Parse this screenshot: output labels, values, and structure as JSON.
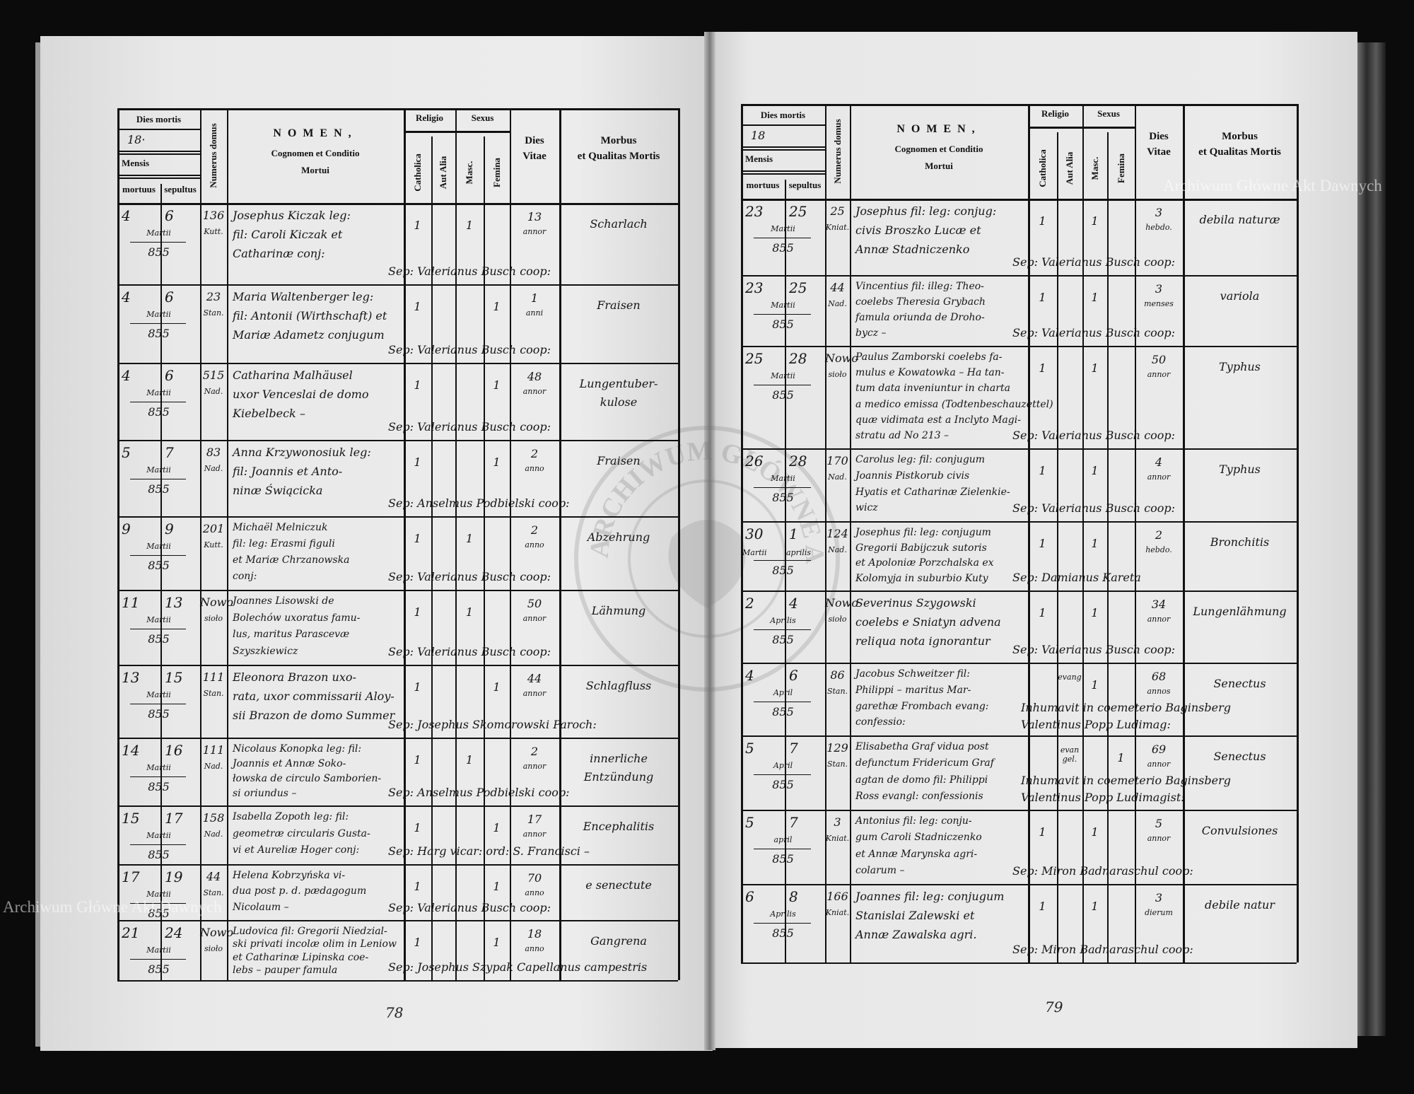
{
  "header": {
    "dies_mortis": "Dies mortis",
    "year_prefix": "18",
    "mensis": "Mensis",
    "mortuus": "mortuus",
    "sepultus": "sepultus",
    "numerus_domus": "Numerus domus",
    "nomen": "NOMEN,",
    "nomen_sub1": "Cognomen et Conditio",
    "nomen_sub2": "Mortui",
    "religio": "Religio",
    "catholica": "Catholica",
    "aut_alia": "Aut Alia",
    "sexus": "Sexus",
    "masc": "Masc.",
    "femina": "Femina",
    "dies_vitae_1": "Dies",
    "dies_vitae_2": "Vitae",
    "morbus_1": "Morbus",
    "morbus_2": "et Qualitas Mortis"
  },
  "watermark": "Archiwum Główne Akt Dawnych",
  "seal_text": "ARCHIWUM GŁÓWNE AKT DAWNYCH",
  "pages": [
    {
      "page_number": "78",
      "year_prefix": "18·",
      "entries": [
        {
          "mortuus": "4",
          "sepultus": "6",
          "month": "Martii",
          "year": "855",
          "house": "136",
          "street": "Kutt.",
          "name": [
            "Josephus Kiczak leg:",
            "fil: Caroli Kiczak et",
            "Catharinæ conj:"
          ],
          "catholica": "1",
          "aut_alia": "",
          "masc": "1",
          "femina": "",
          "vitae": "13",
          "vitae_unit": "annor",
          "morbus": [
            "Scharlach"
          ],
          "sep": "Sep: Valerianus Busch coop:"
        },
        {
          "mortuus": "4",
          "sepultus": "6",
          "month": "Martii",
          "year": "855",
          "house": "23",
          "street": "Stan.",
          "name": [
            "Maria Waltenberger leg:",
            "fil: Antonii (Wirthschaft) et",
            "Mariæ Adametz conjugum"
          ],
          "catholica": "1",
          "aut_alia": "",
          "masc": "",
          "femina": "1",
          "vitae": "1",
          "vitae_unit": "anni",
          "morbus": [
            "Fraisen"
          ],
          "sep": "Sep: Valerianus Busch coop:"
        },
        {
          "mortuus": "4",
          "sepultus": "6",
          "month": "Martii",
          "year": "855",
          "house": "515",
          "street": "Nad.",
          "name": [
            "Catharina Malhäusel",
            "uxor Venceslai de domo",
            "Kiebelbeck –"
          ],
          "catholica": "1",
          "aut_alia": "",
          "masc": "",
          "femina": "1",
          "vitae": "48",
          "vitae_unit": "annor",
          "morbus": [
            "Lungentuber-",
            "kulose"
          ],
          "sep": "Sep: Valerianus Busch coop:"
        },
        {
          "mortuus": "5",
          "sepultus": "7",
          "month": "Martii",
          "year": "855",
          "house": "83",
          "street": "Nad.",
          "name": [
            "Anna Krzywonosiuk leg:",
            "fil: Joannis et Anto-",
            "ninæ Świącicka"
          ],
          "catholica": "1",
          "aut_alia": "",
          "masc": "",
          "femina": "1",
          "vitae": "2",
          "vitae_unit": "anno",
          "morbus": [
            "Fraisen"
          ],
          "sep": "Sep: Anselmus Podbielski coop:"
        },
        {
          "mortuus": "9",
          "sepultus": "9",
          "month": "Martii",
          "year": "855",
          "house": "201",
          "street": "Kutt.",
          "name": [
            "Michaël Melniczuk",
            "fil: leg: Erasmi figuli",
            "et Mariæ Chrzanowska",
            "conj:"
          ],
          "catholica": "1",
          "aut_alia": "",
          "masc": "1",
          "femina": "",
          "vitae": "2",
          "vitae_unit": "anno",
          "morbus": [
            "Abzehrung"
          ],
          "sep": "Sep: Valerianus Busch coop:"
        },
        {
          "mortuus": "11",
          "sepultus": "13",
          "month": "Martii",
          "year": "855",
          "house": "Nowo",
          "street": "sioło",
          "name": [
            "Joannes Lisowski de",
            "Bolechów uxoratus famu-",
            "lus, maritus Parascevæ",
            "Szyszkiewicz"
          ],
          "catholica": "1",
          "aut_alia": "",
          "masc": "1",
          "femina": "",
          "vitae": "50",
          "vitae_unit": "annor",
          "morbus": [
            "Lähmung"
          ],
          "sep": "Sep: Valerianus Busch coop:"
        },
        {
          "mortuus": "13",
          "sepultus": "15",
          "month": "Martii",
          "year": "855",
          "house": "111",
          "street": "Stan.",
          "name": [
            "Eleonora Brazon uxo-",
            "rata, uxor commissarii Aloy-",
            "sii Brazon de domo Summer"
          ],
          "catholica": "1",
          "aut_alia": "",
          "masc": "",
          "femina": "1",
          "vitae": "44",
          "vitae_unit": "annor",
          "morbus": [
            "Schlagfluss"
          ],
          "sep": "Sep: Josephus Skomorowski Paroch:"
        },
        {
          "mortuus": "14",
          "sepultus": "16",
          "month": "Martii",
          "year": "855",
          "house": "111",
          "street": "Nad.",
          "name": [
            "Nicolaus Konopka leg: fil:",
            "Joannis et Annæ Soko-",
            "łowska de circulo Samborien-",
            "si oriundus –"
          ],
          "catholica": "1",
          "aut_alia": "",
          "masc": "1",
          "femina": "",
          "vitae": "2",
          "vitae_unit": "annor",
          "morbus": [
            "innerliche",
            "Entzündung"
          ],
          "sep": "Sep: Anselmus Podbielski coop:"
        },
        {
          "mortuus": "15",
          "sepultus": "17",
          "month": "Martii",
          "year": "855",
          "house": "158",
          "street": "Nad.",
          "name": [
            "Isabella Zopoth leg: fil:",
            "geometræ circularis Gusta-",
            "vi et Aureliæ Hoger conj:"
          ],
          "catholica": "1",
          "aut_alia": "",
          "masc": "",
          "femina": "1",
          "vitae": "17",
          "vitae_unit": "annor",
          "morbus": [
            "Encephalitis"
          ],
          "sep": "Sep: Harg vicar: ord: S. Francisci –"
        },
        {
          "mortuus": "17",
          "sepultus": "19",
          "month": "Martii",
          "year": "855",
          "house": "44",
          "street": "Stan.",
          "name": [
            "Helena Kobrzyńska vi-",
            "dua post p. d. pædagogum",
            "Nicolaum –"
          ],
          "catholica": "1",
          "aut_alia": "",
          "masc": "",
          "femina": "1",
          "vitae": "70",
          "vitae_unit": "anno",
          "morbus": [
            "e senectute"
          ],
          "sep": "Sep: Valerianus Busch coop:"
        },
        {
          "mortuus": "21",
          "sepultus": "24",
          "month": "Martii",
          "year": "855",
          "house": "Nowo",
          "street": "sioło",
          "name": [
            "Ludovica fil: Gregorii Niedzial-",
            "ski privati incolæ olim in Leniow",
            "et Catharinæ Lipinska coe-",
            "lebs – pauper famula"
          ],
          "catholica": "1",
          "aut_alia": "",
          "masc": "",
          "femina": "1",
          "vitae": "18",
          "vitae_unit": "anno",
          "morbus": [
            "Gangrena"
          ],
          "sep": "Sep: Josephus Szypak Capellanus campestris"
        }
      ]
    },
    {
      "page_number": "79",
      "year_prefix": "18",
      "entries": [
        {
          "mortuus": "23",
          "sepultus": "25",
          "month": "Martii",
          "year": "855",
          "house": "25",
          "street": "Kniat.",
          "name": [
            "Josephus fil: leg: conjug:",
            "civis Broszko Lucæ et",
            "Annæ Stadniczenko"
          ],
          "catholica": "1",
          "aut_alia": "",
          "masc": "1",
          "femina": "",
          "vitae": "3",
          "vitae_unit": "hebdo.",
          "morbus": [
            "debila naturæ"
          ],
          "sep": "Sep: Valerianus Busch coop:"
        },
        {
          "mortuus": "23",
          "sepultus": "25",
          "month": "Martii",
          "year": "855",
          "house": "44",
          "street": "Nad.",
          "name": [
            "Vincentius fil: illeg: Theo-",
            "coelebs Theresia Grybach",
            "famula oriunda de Droho-",
            "bycz –"
          ],
          "catholica": "1",
          "aut_alia": "",
          "masc": "1",
          "femina": "",
          "vitae": "3",
          "vitae_unit": "menses",
          "morbus": [
            "variola"
          ],
          "sep": "Sep: Valerianus Busch coop:"
        },
        {
          "mortuus": "25",
          "sepultus": "28",
          "month": "Martii",
          "year": "855",
          "house": "Nowo",
          "street": "sioło",
          "name": [
            "Paulus Zamborski coelebs fa-",
            "mulus e Kowatowka – Ha tan-",
            "tum data inveniuntur in charta",
            "a medico emissa (Todtenbeschauzettel)",
            "quæ vidimata est a Inclyto Magi-",
            "stratu ad No 213 –"
          ],
          "catholica": "1",
          "aut_alia": "",
          "masc": "1",
          "femina": "",
          "vitae": "50",
          "vitae_unit": "annor",
          "morbus": [
            "Typhus"
          ],
          "sep": "Sep: Valerianus Busch coop:"
        },
        {
          "mortuus": "26",
          "sepultus": "28",
          "month": "Martii",
          "year": "855",
          "house": "170",
          "street": "Nad.",
          "name": [
            "Carolus leg: fil: conjugum",
            "Joannis Pistkorub civis",
            "Hyatis et Catharinæ Zielenkie-",
            "wicz"
          ],
          "catholica": "1",
          "aut_alia": "",
          "masc": "1",
          "femina": "",
          "vitae": "4",
          "vitae_unit": "annor",
          "morbus": [
            "Typhus"
          ],
          "sep": "Sep: Valerianus Busch coop:"
        },
        {
          "mortuus": "30",
          "sepultus": "1",
          "month": "Martii",
          "month2": "aprilis",
          "year": "855",
          "house": "124",
          "street": "Nad.",
          "name": [
            "Josephus fil: leg: conjugum",
            "Gregorii Babijczuk sutoris",
            "et Apoloniæ Porzchalska ex",
            "Kolomyja in suburbio Kuty"
          ],
          "catholica": "1",
          "aut_alia": "",
          "masc": "1",
          "femina": "",
          "vitae": "2",
          "vitae_unit": "hebdo.",
          "morbus": [
            "Bronchitis"
          ],
          "sep": "Sep: Damianus Kareta"
        },
        {
          "mortuus": "2",
          "sepultus": "4",
          "month": "Aprilis",
          "year": "855",
          "house": "Nowo",
          "street": "sioło",
          "name": [
            "Severinus Szygowski",
            "coelebs e Sniatyn advena",
            "reliqua nota ignorantur"
          ],
          "catholica": "1",
          "aut_alia": "",
          "masc": "1",
          "femina": "",
          "vitae": "34",
          "vitae_unit": "annor",
          "morbus": [
            "Lungenlähmung"
          ],
          "sep": "Sep: Valerianus Busch coop:"
        },
        {
          "mortuus": "4",
          "sepultus": "6",
          "month": "April",
          "year": "855",
          "house": "86",
          "street": "Stan.",
          "name": [
            "Jacobus Schweitzer fil:",
            "Philippi – maritus Mar-",
            "garethæ Frombach evang:",
            "confessio:"
          ],
          "catholica": "",
          "aut_alia": "evang",
          "masc": "1",
          "femina": "",
          "vitae": "68",
          "vitae_unit": "annos",
          "morbus": [
            "Senectus"
          ],
          "sep": "Inhumavit in coemeterio Baginsberg",
          "sep2": "Valentinus Popp Ludimag:"
        },
        {
          "mortuus": "5",
          "sepultus": "7",
          "month": "April",
          "year": "855",
          "house": "129",
          "street": "Stan.",
          "name": [
            "Elisabetha Graf vidua post",
            "defunctum Fridericum Graf",
            "agtan de domo fil: Philippi",
            "Ross evangl: confessionis"
          ],
          "catholica": "",
          "aut_alia": "evan gel.",
          "masc": "",
          "femina": "1",
          "vitae": "69",
          "vitae_unit": "annor",
          "morbus": [
            "Senectus"
          ],
          "sep": "Inhumavit in coemeterio Baginsberg",
          "sep2": "Valentinus Popp Ludimagist:"
        },
        {
          "mortuus": "5",
          "sepultus": "7",
          "month": "april",
          "year": "855",
          "house": "3",
          "street": "Kniat.",
          "name": [
            "Antonius fil: leg: conju-",
            "gum Caroli Stadniczenko",
            "et Annæ Marynska agri-",
            "colarum –"
          ],
          "catholica": "1",
          "aut_alia": "",
          "masc": "1",
          "femina": "",
          "vitae": "5",
          "vitae_unit": "annor",
          "morbus": [
            "Convulsiones"
          ],
          "sep": "Sep: Miron Badnaraschul coop:"
        },
        {
          "mortuus": "6",
          "sepultus": "8",
          "month": "Aprilis",
          "year": "855",
          "house": "166",
          "street": "Kniat.",
          "name": [
            "Joannes fil: leg: conjugum",
            "Stanislai Zalewski et",
            "Annæ Zawalska agri."
          ],
          "catholica": "1",
          "aut_alia": "",
          "masc": "1",
          "femina": "",
          "vitae": "3",
          "vitae_unit": "dierum",
          "morbus": [
            "debile natur"
          ],
          "sep": "Sep: Miron Badnaraschul coop:"
        }
      ]
    }
  ]
}
